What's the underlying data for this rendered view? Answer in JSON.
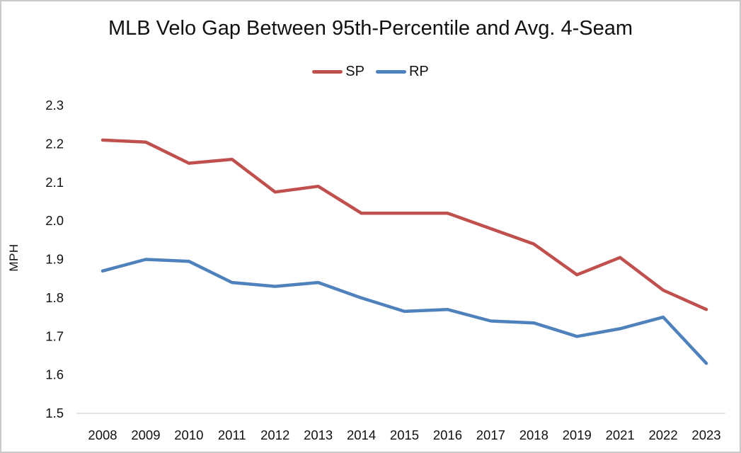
{
  "chart_data": {
    "type": "line",
    "title": "MLB Velo Gap Between 95th-Percentile and Avg. 4-Seam",
    "xlabel": "",
    "ylabel": "MPH",
    "categories": [
      "2008",
      "2009",
      "2010",
      "2011",
      "2012",
      "2013",
      "2014",
      "2015",
      "2016",
      "2017",
      "2018",
      "2019",
      "2021",
      "2022",
      "2023"
    ],
    "series": [
      {
        "name": "SP",
        "color": "#C0504D",
        "values": [
          2.21,
          2.205,
          2.15,
          2.16,
          2.075,
          2.09,
          2.02,
          2.02,
          2.02,
          1.98,
          1.94,
          1.86,
          1.905,
          1.82,
          1.77
        ]
      },
      {
        "name": "RP",
        "color": "#4F81BD",
        "values": [
          1.87,
          1.9,
          1.895,
          1.84,
          1.83,
          1.84,
          1.8,
          1.765,
          1.77,
          1.74,
          1.735,
          1.7,
          1.72,
          1.75,
          1.63
        ]
      }
    ],
    "ylim": [
      1.5,
      2.3
    ],
    "ytick_step": 0.1,
    "ytick_labels": [
      "2.3",
      "2.2",
      "2.1",
      "2.0",
      "1.9",
      "1.8",
      "1.7",
      "1.6",
      "1.5"
    ],
    "grid": false,
    "legend_position": "top-center",
    "axis_line_color": "#D9D9D9",
    "text_color": "#111111",
    "background_color": "#FFFFFF",
    "border_color": "#C9C9C9"
  }
}
